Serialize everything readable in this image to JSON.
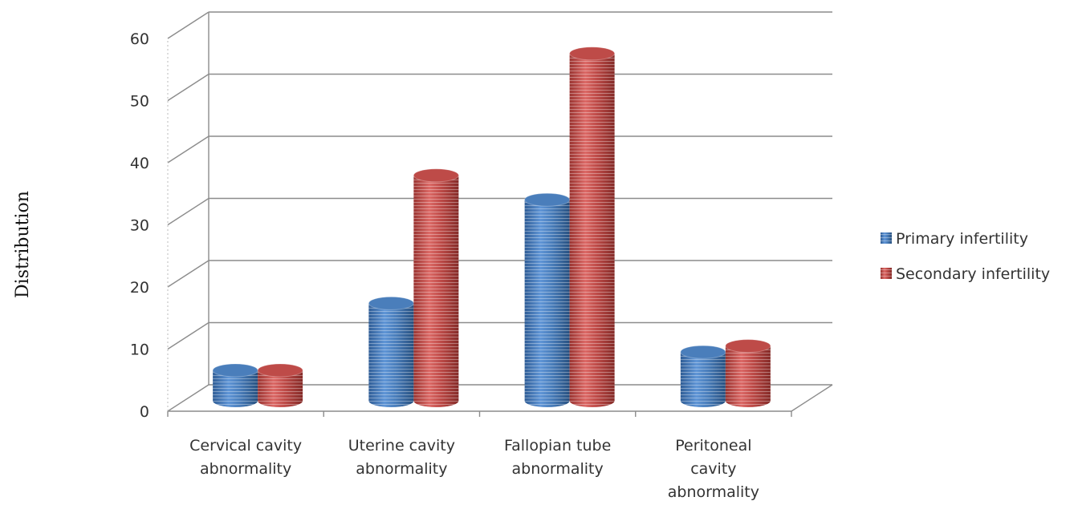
{
  "chart_data": {
    "type": "bar",
    "style": "3d-cylinder",
    "categories": [
      [
        "Cervical cavity",
        "abnormality"
      ],
      [
        "Uterine cavity",
        "abnormality"
      ],
      [
        "Fallopian tube",
        "abnormality"
      ],
      [
        "Peritoneal",
        "cavity",
        "abnormality"
      ]
    ],
    "series": [
      {
        "name": "Primary infertility",
        "color": "#4a7ebb",
        "values": [
          5,
          16,
          33,
          8
        ]
      },
      {
        "name": "Secondary infertility",
        "color": "#be4b48",
        "values": [
          5,
          37,
          57,
          9
        ]
      }
    ],
    "ylabel": "Distribution",
    "ylim": [
      0,
      60
    ],
    "yticks": [
      "0",
      "10",
      "20",
      "30",
      "40",
      "50",
      "60"
    ],
    "grid": true,
    "legend_position": "right"
  }
}
